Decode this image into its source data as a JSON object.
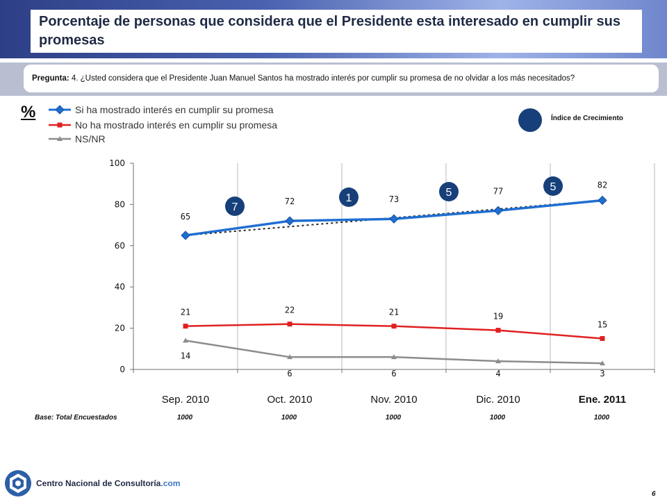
{
  "title": "Porcentaje de personas que considera que el Presidente esta interesado en cumplir sus promesas",
  "question": {
    "prefix": "Pregunta:",
    "text": "4. ¿Usted considera que el Presidente Juan Manuel Santos ha mostrado  interés por cumplir su promesa de no olvidar a los  más necesitados?"
  },
  "percent_symbol": "%",
  "index_legend": {
    "label": "Índice de Crecimiento",
    "color": "#17407a"
  },
  "base": {
    "label": "Base: Total Encuestados",
    "values": [
      "1000",
      "1000",
      "1000",
      "1000",
      "1000"
    ]
  },
  "footer": {
    "org_name": "Centro Nacional de Consultoría",
    "org_suffix": ".com",
    "page_number": "6"
  },
  "chart_data": {
    "type": "line",
    "categories": [
      "Sep. 2010",
      "Oct. 2010",
      "Nov. 2010",
      "Dic. 2010",
      "Ene. 2011"
    ],
    "highlighted_category": "Ene. 2011",
    "ylim": [
      0,
      100
    ],
    "yticks": [
      0,
      20,
      40,
      60,
      80,
      100
    ],
    "grid": "vertical",
    "legend_position": "top-left",
    "series": [
      {
        "name": "Si ha mostrado interés en cumplir su promesa",
        "values": [
          65,
          72,
          73,
          77,
          82
        ],
        "labels": [
          "65",
          "72",
          "73",
          "77",
          "82"
        ],
        "color": "#1f6fd1",
        "marker": "diamond",
        "trend": "dotted"
      },
      {
        "name": "No ha mostrado interés en cumplir su promesa",
        "values": [
          21,
          22,
          21,
          19,
          15
        ],
        "labels": [
          "21",
          "22",
          "21",
          "19",
          "15"
        ],
        "color": "#e02020",
        "marker": "square"
      },
      {
        "name": "NS/NR",
        "values": [
          14,
          6,
          6,
          4,
          3
        ],
        "labels": [
          "14",
          "6",
          "6",
          "4",
          "3"
        ],
        "color": "#8c8c8c",
        "marker": "triangle"
      }
    ],
    "growth_index": [
      {
        "between": [
          0,
          1
        ],
        "value": "7"
      },
      {
        "between": [
          1,
          2
        ],
        "value": "1"
      },
      {
        "between": [
          2,
          3
        ],
        "value": "5"
      },
      {
        "between": [
          3,
          4
        ],
        "value": "5"
      }
    ]
  }
}
